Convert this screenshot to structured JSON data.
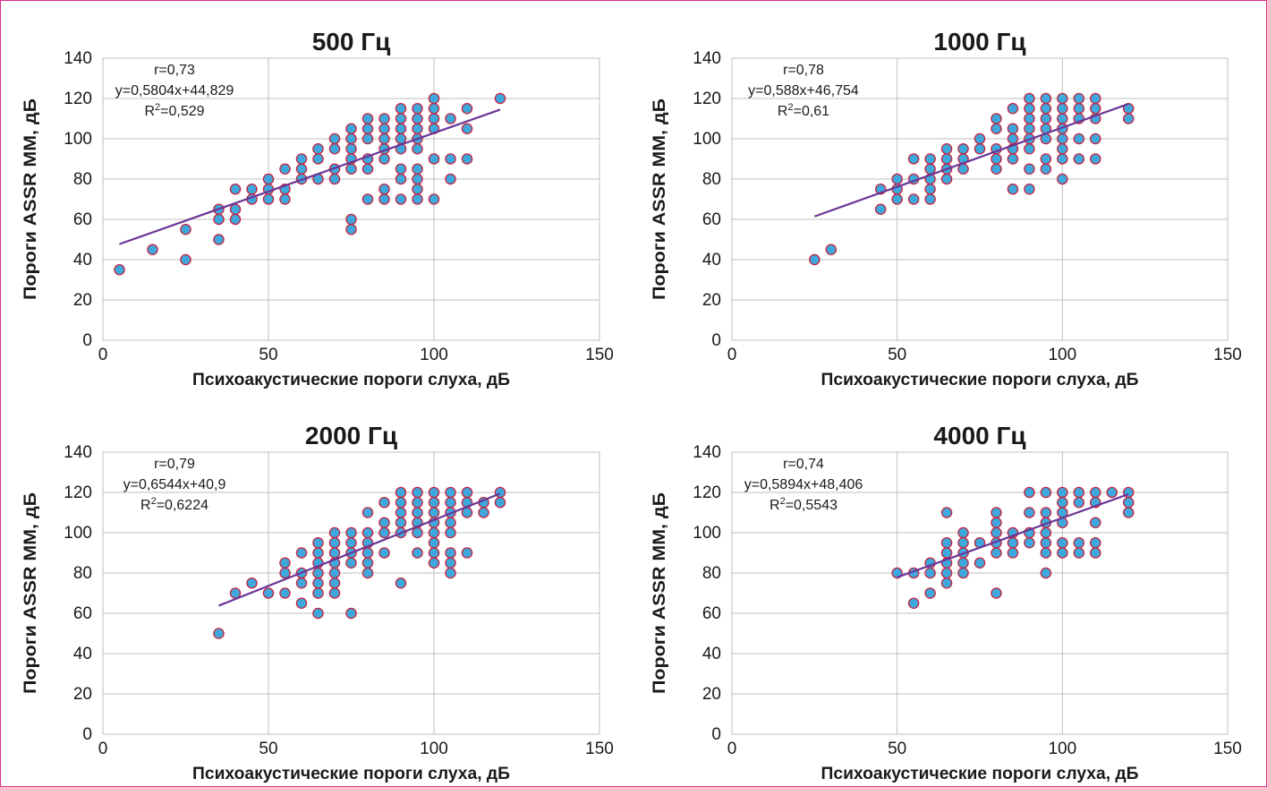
{
  "colors": {
    "frame": "#d6338a",
    "point_fill": "#3ea8dc",
    "point_stroke": "#c8203c",
    "trend": "#6a3596",
    "grid": "#bfbfbf",
    "text": "#1a1a1a"
  },
  "chart_data": [
    {
      "type": "scatter",
      "title": "500 Гц",
      "xlabel": "Психоакустические пороги слуха, дБ",
      "ylabel": "Пороги ASSR ММ, дБ",
      "xlim": [
        0,
        150
      ],
      "ylim": [
        0,
        140
      ],
      "xticks": [
        0,
        50,
        100,
        150
      ],
      "yticks": [
        0,
        20,
        40,
        60,
        80,
        100,
        120,
        140
      ],
      "grid": true,
      "annotation": {
        "r": "r=0,73",
        "equation": "y=0,5804x+44,829",
        "r2_prefix": "R",
        "r2_sup": "2",
        "r2_value": "=0,529"
      },
      "trendline": {
        "slope": 0.5804,
        "intercept": 44.829,
        "x_range": [
          5,
          120
        ]
      },
      "points": [
        [
          5,
          35
        ],
        [
          15,
          45
        ],
        [
          25,
          55
        ],
        [
          25,
          40
        ],
        [
          35,
          65
        ],
        [
          35,
          60
        ],
        [
          35,
          50
        ],
        [
          40,
          75
        ],
        [
          40,
          65
        ],
        [
          40,
          60
        ],
        [
          45,
          75
        ],
        [
          45,
          70
        ],
        [
          50,
          80
        ],
        [
          50,
          75
        ],
        [
          50,
          70
        ],
        [
          55,
          85
        ],
        [
          55,
          75
        ],
        [
          55,
          70
        ],
        [
          60,
          90
        ],
        [
          60,
          85
        ],
        [
          60,
          80
        ],
        [
          65,
          95
        ],
        [
          65,
          90
        ],
        [
          65,
          80
        ],
        [
          70,
          100
        ],
        [
          70,
          95
        ],
        [
          70,
          85
        ],
        [
          70,
          80
        ],
        [
          75,
          105
        ],
        [
          75,
          100
        ],
        [
          75,
          95
        ],
        [
          75,
          90
        ],
        [
          75,
          85
        ],
        [
          75,
          60
        ],
        [
          75,
          55
        ],
        [
          80,
          110
        ],
        [
          80,
          105
        ],
        [
          80,
          100
        ],
        [
          80,
          90
        ],
        [
          80,
          85
        ],
        [
          80,
          70
        ],
        [
          85,
          110
        ],
        [
          85,
          105
        ],
        [
          85,
          100
        ],
        [
          85,
          95
        ],
        [
          85,
          90
        ],
        [
          85,
          75
        ],
        [
          85,
          70
        ],
        [
          90,
          115
        ],
        [
          90,
          110
        ],
        [
          90,
          105
        ],
        [
          90,
          100
        ],
        [
          90,
          95
        ],
        [
          90,
          85
        ],
        [
          90,
          80
        ],
        [
          90,
          70
        ],
        [
          95,
          115
        ],
        [
          95,
          110
        ],
        [
          95,
          105
        ],
        [
          95,
          100
        ],
        [
          95,
          95
        ],
        [
          95,
          85
        ],
        [
          95,
          80
        ],
        [
          95,
          75
        ],
        [
          95,
          70
        ],
        [
          100,
          120
        ],
        [
          100,
          115
        ],
        [
          100,
          110
        ],
        [
          100,
          105
        ],
        [
          100,
          90
        ],
        [
          100,
          70
        ],
        [
          105,
          110
        ],
        [
          105,
          90
        ],
        [
          105,
          80
        ],
        [
          110,
          115
        ],
        [
          110,
          105
        ],
        [
          110,
          90
        ],
        [
          120,
          120
        ]
      ]
    },
    {
      "type": "scatter",
      "title": "1000 Гц",
      "xlabel": "Психоакустические пороги слуха, дБ",
      "ylabel": "Пороги ASSR ММ, дБ",
      "xlim": [
        0,
        150
      ],
      "ylim": [
        0,
        140
      ],
      "xticks": [
        0,
        50,
        100,
        150
      ],
      "yticks": [
        0,
        20,
        40,
        60,
        80,
        100,
        120,
        140
      ],
      "grid": true,
      "annotation": {
        "r": "r=0,78",
        "equation": "y=0,588x+46,754",
        "r2_prefix": "R",
        "r2_sup": "2",
        "r2_value": "=0,61"
      },
      "trendline": {
        "slope": 0.588,
        "intercept": 46.754,
        "x_range": [
          25,
          120
        ]
      },
      "points": [
        [
          25,
          40
        ],
        [
          30,
          45
        ],
        [
          45,
          75
        ],
        [
          45,
          65
        ],
        [
          50,
          80
        ],
        [
          50,
          75
        ],
        [
          50,
          70
        ],
        [
          55,
          90
        ],
        [
          55,
          80
        ],
        [
          55,
          70
        ],
        [
          60,
          90
        ],
        [
          60,
          85
        ],
        [
          60,
          80
        ],
        [
          60,
          75
        ],
        [
          60,
          70
        ],
        [
          65,
          95
        ],
        [
          65,
          90
        ],
        [
          65,
          85
        ],
        [
          65,
          80
        ],
        [
          70,
          95
        ],
        [
          70,
          90
        ],
        [
          70,
          85
        ],
        [
          75,
          100
        ],
        [
          75,
          95
        ],
        [
          80,
          110
        ],
        [
          80,
          105
        ],
        [
          80,
          95
        ],
        [
          80,
          90
        ],
        [
          80,
          85
        ],
        [
          85,
          115
        ],
        [
          85,
          105
        ],
        [
          85,
          100
        ],
        [
          85,
          95
        ],
        [
          85,
          90
        ],
        [
          85,
          75
        ],
        [
          90,
          120
        ],
        [
          90,
          115
        ],
        [
          90,
          110
        ],
        [
          90,
          105
        ],
        [
          90,
          100
        ],
        [
          90,
          95
        ],
        [
          90,
          85
        ],
        [
          90,
          75
        ],
        [
          95,
          120
        ],
        [
          95,
          115
        ],
        [
          95,
          110
        ],
        [
          95,
          105
        ],
        [
          95,
          100
        ],
        [
          95,
          90
        ],
        [
          95,
          85
        ],
        [
          100,
          120
        ],
        [
          100,
          115
        ],
        [
          100,
          110
        ],
        [
          100,
          105
        ],
        [
          100,
          100
        ],
        [
          100,
          95
        ],
        [
          100,
          90
        ],
        [
          100,
          80
        ],
        [
          105,
          120
        ],
        [
          105,
          115
        ],
        [
          105,
          110
        ],
        [
          105,
          100
        ],
        [
          105,
          90
        ],
        [
          110,
          120
        ],
        [
          110,
          115
        ],
        [
          110,
          110
        ],
        [
          110,
          100
        ],
        [
          110,
          90
        ],
        [
          120,
          115
        ],
        [
          120,
          110
        ]
      ]
    },
    {
      "type": "scatter",
      "title": "2000 Гц",
      "xlabel": "Психоакустические пороги слуха, дБ",
      "ylabel": "Пороги ASSR ММ, дБ",
      "xlim": [
        0,
        150
      ],
      "ylim": [
        0,
        140
      ],
      "xticks": [
        0,
        50,
        100,
        150
      ],
      "yticks": [
        0,
        20,
        40,
        60,
        80,
        100,
        120,
        140
      ],
      "grid": true,
      "annotation": {
        "r": "r=0,79",
        "equation": "y=0,6544x+40,9",
        "r2_prefix": "R",
        "r2_sup": "2",
        "r2_value": "=0,6224"
      },
      "trendline": {
        "slope": 0.6544,
        "intercept": 40.9,
        "x_range": [
          35,
          120
        ]
      },
      "points": [
        [
          35,
          50
        ],
        [
          40,
          70
        ],
        [
          45,
          75
        ],
        [
          50,
          70
        ],
        [
          55,
          85
        ],
        [
          55,
          80
        ],
        [
          55,
          70
        ],
        [
          60,
          90
        ],
        [
          60,
          80
        ],
        [
          60,
          75
        ],
        [
          60,
          65
        ],
        [
          65,
          95
        ],
        [
          65,
          90
        ],
        [
          65,
          85
        ],
        [
          65,
          80
        ],
        [
          65,
          75
        ],
        [
          65,
          70
        ],
        [
          65,
          60
        ],
        [
          70,
          100
        ],
        [
          70,
          95
        ],
        [
          70,
          90
        ],
        [
          70,
          85
        ],
        [
          70,
          80
        ],
        [
          70,
          75
        ],
        [
          70,
          70
        ],
        [
          75,
          100
        ],
        [
          75,
          95
        ],
        [
          75,
          90
        ],
        [
          75,
          85
        ],
        [
          75,
          60
        ],
        [
          80,
          110
        ],
        [
          80,
          100
        ],
        [
          80,
          95
        ],
        [
          80,
          90
        ],
        [
          80,
          85
        ],
        [
          80,
          80
        ],
        [
          85,
          115
        ],
        [
          85,
          105
        ],
        [
          85,
          100
        ],
        [
          85,
          90
        ],
        [
          90,
          120
        ],
        [
          90,
          115
        ],
        [
          90,
          110
        ],
        [
          90,
          105
        ],
        [
          90,
          100
        ],
        [
          90,
          75
        ],
        [
          95,
          120
        ],
        [
          95,
          115
        ],
        [
          95,
          110
        ],
        [
          95,
          105
        ],
        [
          95,
          100
        ],
        [
          95,
          90
        ],
        [
          100,
          120
        ],
        [
          100,
          115
        ],
        [
          100,
          110
        ],
        [
          100,
          105
        ],
        [
          100,
          100
        ],
        [
          100,
          95
        ],
        [
          100,
          90
        ],
        [
          100,
          85
        ],
        [
          105,
          120
        ],
        [
          105,
          115
        ],
        [
          105,
          110
        ],
        [
          105,
          105
        ],
        [
          105,
          100
        ],
        [
          105,
          90
        ],
        [
          105,
          85
        ],
        [
          105,
          80
        ],
        [
          110,
          120
        ],
        [
          110,
          115
        ],
        [
          110,
          110
        ],
        [
          110,
          90
        ],
        [
          115,
          115
        ],
        [
          115,
          110
        ],
        [
          120,
          120
        ],
        [
          120,
          115
        ]
      ]
    },
    {
      "type": "scatter",
      "title": "4000 Гц",
      "xlabel": "Психоакустические пороги слуха, дБ",
      "ylabel": "Пороги ASSR ММ, дБ",
      "xlim": [
        0,
        150
      ],
      "ylim": [
        0,
        140
      ],
      "xticks": [
        0,
        50,
        100,
        150
      ],
      "yticks": [
        0,
        20,
        40,
        60,
        80,
        100,
        120,
        140
      ],
      "grid": true,
      "annotation": {
        "r": "r=0,74",
        "equation": "y=0,5894x+48,406",
        "r2_prefix": "R",
        "r2_sup": "2",
        "r2_value": "=0,5543"
      },
      "trendline": {
        "slope": 0.5894,
        "intercept": 48.406,
        "x_range": [
          50,
          120
        ]
      },
      "points": [
        [
          50,
          80
        ],
        [
          55,
          80
        ],
        [
          55,
          65
        ],
        [
          60,
          85
        ],
        [
          60,
          80
        ],
        [
          60,
          70
        ],
        [
          65,
          110
        ],
        [
          65,
          95
        ],
        [
          65,
          90
        ],
        [
          65,
          85
        ],
        [
          65,
          80
        ],
        [
          65,
          75
        ],
        [
          70,
          100
        ],
        [
          70,
          95
        ],
        [
          70,
          90
        ],
        [
          70,
          85
        ],
        [
          70,
          80
        ],
        [
          75,
          95
        ],
        [
          75,
          85
        ],
        [
          80,
          110
        ],
        [
          80,
          105
        ],
        [
          80,
          100
        ],
        [
          80,
          95
        ],
        [
          80,
          90
        ],
        [
          80,
          70
        ],
        [
          85,
          100
        ],
        [
          85,
          95
        ],
        [
          85,
          90
        ],
        [
          90,
          120
        ],
        [
          90,
          110
        ],
        [
          90,
          100
        ],
        [
          90,
          95
        ],
        [
          95,
          120
        ],
        [
          95,
          110
        ],
        [
          95,
          105
        ],
        [
          95,
          100
        ],
        [
          95,
          95
        ],
        [
          95,
          90
        ],
        [
          95,
          80
        ],
        [
          100,
          120
        ],
        [
          100,
          115
        ],
        [
          100,
          110
        ],
        [
          100,
          105
        ],
        [
          100,
          95
        ],
        [
          100,
          90
        ],
        [
          105,
          120
        ],
        [
          105,
          115
        ],
        [
          105,
          95
        ],
        [
          105,
          90
        ],
        [
          110,
          120
        ],
        [
          110,
          115
        ],
        [
          110,
          105
        ],
        [
          110,
          95
        ],
        [
          110,
          90
        ],
        [
          115,
          120
        ],
        [
          120,
          120
        ],
        [
          120,
          115
        ],
        [
          120,
          110
        ]
      ]
    }
  ]
}
